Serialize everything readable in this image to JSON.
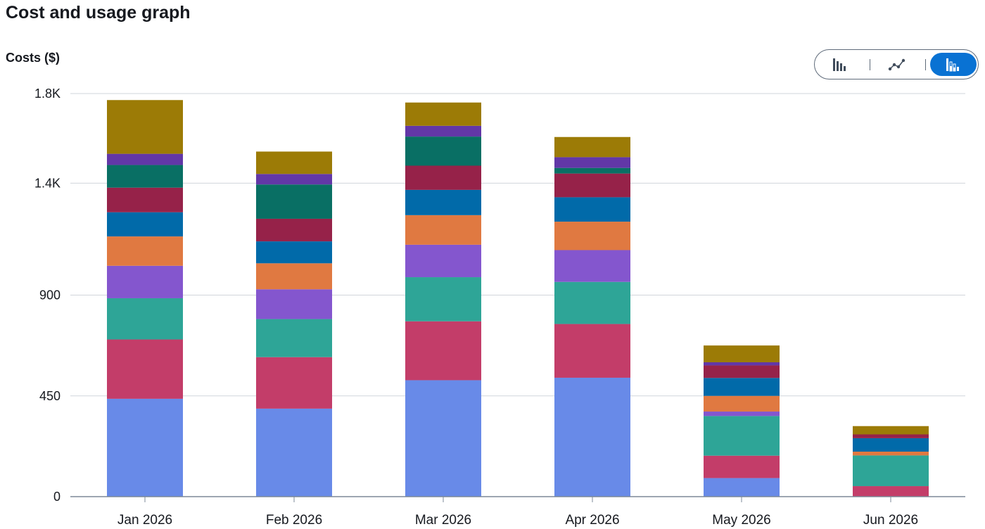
{
  "header": {
    "title": "Cost and usage graph"
  },
  "toggle": {
    "options": [
      "bar-chart-icon",
      "line-chart-icon",
      "stacked-bar-chart-icon"
    ],
    "selected": 2
  },
  "chart_data": {
    "type": "bar",
    "stacked": true,
    "title": "",
    "ylabel": "Costs ($)",
    "xlabel": "",
    "ylim": [
      0,
      1800
    ],
    "yticks": [
      0,
      450,
      900,
      1400,
      1800
    ],
    "ytick_labels": [
      "0",
      "450",
      "900",
      "1.4K",
      "1.8K"
    ],
    "grid": true,
    "categories": [
      "Jan 2026",
      "Feb 2026",
      "Mar 2026",
      "Apr 2026",
      "May 2026",
      "Jun 2026"
    ],
    "series": [
      {
        "color": "#688ae8",
        "values": [
          437,
          393,
          520,
          531,
          83,
          0
        ]
      },
      {
        "color": "#c33d69",
        "values": [
          265,
          230,
          263,
          240,
          100,
          47
        ]
      },
      {
        "color": "#2ea597",
        "values": [
          184,
          170,
          197,
          188,
          177,
          137
        ]
      },
      {
        "color": "#8456ce",
        "values": [
          145,
          133,
          145,
          142,
          20,
          0
        ]
      },
      {
        "color": "#e07941",
        "values": [
          131,
          116,
          132,
          127,
          70,
          17
        ]
      },
      {
        "color": "#016aa9",
        "values": [
          108,
          98,
          113,
          109,
          80,
          60
        ]
      },
      {
        "color": "#962249",
        "values": [
          110,
          101,
          108,
          106,
          56,
          17
        ]
      },
      {
        "color": "#096f64",
        "values": [
          101,
          153,
          130,
          25,
          0,
          0
        ]
      },
      {
        "color": "#6237a7",
        "values": [
          50,
          47,
          48,
          48,
          14,
          0
        ]
      },
      {
        "color": "#9c7b06",
        "values": [
          240,
          100,
          104,
          90,
          75,
          37
        ]
      }
    ]
  }
}
